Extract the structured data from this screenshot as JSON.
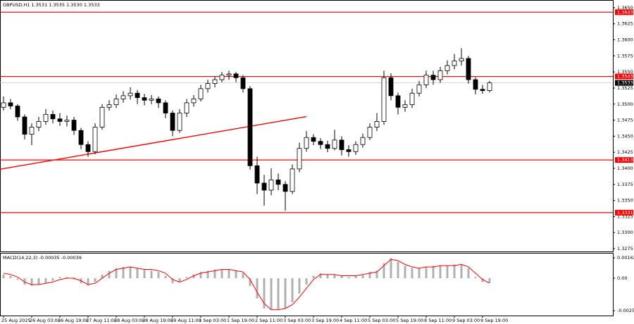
{
  "chart_data": [
    {
      "type": "candlestick",
      "title": "GBPUSD,H1  1.3531 1.3535 1.3530 1.3533",
      "open": [
        1.3495,
        1.3502,
        1.3497,
        1.348,
        1.3453,
        1.3464,
        1.3473,
        1.3484,
        1.3477,
        1.3473,
        1.3475,
        1.3459,
        1.3437,
        1.3426,
        1.3464,
        1.3495,
        1.3499,
        1.3508,
        1.3513,
        1.3517,
        1.351,
        1.3506,
        1.3508,
        1.3502,
        1.3486,
        1.3459,
        1.3486,
        1.3502,
        1.3508,
        1.3524,
        1.3532,
        1.3538,
        1.3545,
        1.3547,
        1.3541,
        1.3524,
        1.3404,
        1.3377,
        1.3366,
        1.3382,
        1.3375,
        1.3364,
        1.3399,
        1.3431,
        1.3448,
        1.3442,
        1.3437,
        1.3431,
        1.3444,
        1.3429,
        1.3426,
        1.3437,
        1.3448,
        1.3464,
        1.3473,
        1.3541,
        1.3513,
        1.3495,
        1.3499,
        1.3517,
        1.353,
        1.3545,
        1.3538,
        1.3552,
        1.356,
        1.3567,
        1.3571,
        1.3538,
        1.3523,
        1.3521
      ],
      "high": [
        1.3512,
        1.3508,
        1.35,
        1.3484,
        1.347,
        1.348,
        1.3492,
        1.349,
        1.3486,
        1.3482,
        1.348,
        1.3463,
        1.3442,
        1.347,
        1.35,
        1.3506,
        1.3515,
        1.352,
        1.3526,
        1.3522,
        1.3516,
        1.3514,
        1.3512,
        1.3506,
        1.349,
        1.3492,
        1.3508,
        1.3514,
        1.353,
        1.3538,
        1.3543,
        1.355,
        1.3552,
        1.355,
        1.3545,
        1.3528,
        1.3418,
        1.339,
        1.34,
        1.3392,
        1.338,
        1.3406,
        1.344,
        1.3458,
        1.3453,
        1.3447,
        1.3443,
        1.346,
        1.345,
        1.3436,
        1.3442,
        1.3454,
        1.347,
        1.3486,
        1.3552,
        1.3548,
        1.3518,
        1.3506,
        1.3524,
        1.3536,
        1.3552,
        1.3552,
        1.3558,
        1.3568,
        1.3578,
        1.3587,
        1.3575,
        1.3542,
        1.353,
        1.3536
      ],
      "low": [
        1.349,
        1.3492,
        1.3474,
        1.3445,
        1.3436,
        1.3458,
        1.3468,
        1.347,
        1.3466,
        1.3465,
        1.3452,
        1.343,
        1.3418,
        1.3422,
        1.346,
        1.349,
        1.3494,
        1.3502,
        1.3507,
        1.35,
        1.3498,
        1.35,
        1.3494,
        1.3478,
        1.345,
        1.3455,
        1.348,
        1.3496,
        1.3504,
        1.3518,
        1.3526,
        1.3534,
        1.3538,
        1.3534,
        1.3518,
        1.3398,
        1.336,
        1.3342,
        1.3358,
        1.3366,
        1.3334,
        1.336,
        1.3394,
        1.3426,
        1.3436,
        1.343,
        1.3425,
        1.3428,
        1.342,
        1.3418,
        1.3421,
        1.3432,
        1.3444,
        1.3458,
        1.3468,
        1.3506,
        1.3484,
        1.3488,
        1.3494,
        1.3512,
        1.3525,
        1.353,
        1.3533,
        1.3546,
        1.3554,
        1.356,
        1.3532,
        1.3515,
        1.3516,
        1.3518
      ],
      "close": [
        1.3502,
        1.3497,
        1.348,
        1.3453,
        1.3464,
        1.3473,
        1.3484,
        1.3477,
        1.3473,
        1.3475,
        1.3459,
        1.3437,
        1.3426,
        1.3464,
        1.3495,
        1.3499,
        1.3508,
        1.3513,
        1.3517,
        1.351,
        1.3506,
        1.3508,
        1.3502,
        1.3486,
        1.3459,
        1.3486,
        1.3502,
        1.3508,
        1.3524,
        1.3532,
        1.3538,
        1.3545,
        1.3547,
        1.3541,
        1.3524,
        1.3404,
        1.3377,
        1.3366,
        1.3382,
        1.3375,
        1.3364,
        1.3399,
        1.3431,
        1.3448,
        1.3442,
        1.3437,
        1.3431,
        1.3444,
        1.3429,
        1.3426,
        1.3437,
        1.3448,
        1.3464,
        1.3473,
        1.3541,
        1.3513,
        1.3495,
        1.3499,
        1.3517,
        1.353,
        1.3545,
        1.3538,
        1.3552,
        1.356,
        1.3567,
        1.3571,
        1.3538,
        1.3523,
        1.3521,
        1.3533
      ],
      "xlim": [
        -0.5,
        86.5
      ],
      "xticks": [
        {
          "value": 0,
          "label": "25 Aug 2025"
        },
        {
          "value": 4,
          "label": "26 Aug 03:00"
        },
        {
          "value": 8,
          "label": "26 Aug 19:00"
        },
        {
          "value": 12,
          "label": "27 Aug 11:00"
        },
        {
          "value": 16,
          "label": "28 Aug 03:00"
        },
        {
          "value": 20,
          "label": "28 Aug 19:00"
        },
        {
          "value": 24,
          "label": "29 Aug 11:00"
        },
        {
          "value": 28,
          "label": "1 Sep 03:00"
        },
        {
          "value": 32,
          "label": "1 Sep 19:00"
        },
        {
          "value": 36,
          "label": "2 Sep 11:00"
        },
        {
          "value": 40,
          "label": "3 Sep 03:00"
        },
        {
          "value": 44,
          "label": "3 Sep 19:00"
        },
        {
          "value": 48,
          "label": "4 Sep 11:00"
        },
        {
          "value": 52,
          "label": "5 Sep 03:00"
        },
        {
          "value": 56,
          "label": "5 Sep 19:00"
        },
        {
          "value": 60,
          "label": "8 Sep 11:00"
        },
        {
          "value": 64,
          "label": "9 Sep 03:00"
        },
        {
          "value": 68,
          "label": "9 Sep 19:00"
        }
      ],
      "ylim": [
        1.32706,
        1.36609
      ],
      "yticks": [
        1.3275,
        {
          "value": 1.33,
          "label": "1.3300"
        },
        1.3325,
        {
          "value": 1.335,
          "label": "1.3350"
        },
        1.3375,
        {
          "value": 1.34,
          "label": "1.3400"
        },
        1.3425,
        {
          "value": 1.345,
          "label": "1.3450"
        },
        1.3475,
        {
          "value": 1.35,
          "label": "1.3500"
        },
        1.3525,
        {
          "value": 1.355,
          "label": "1.3550"
        },
        1.3575,
        {
          "value": 1.36,
          "label": "1.3600"
        },
        1.3625,
        {
          "value": 1.365,
          "label": "1.3650"
        }
      ],
      "levels": [
        1.3643,
        1.3543,
        1.3413,
        1.3331
      ],
      "level_color": "#ff0000",
      "trendline": {
        "x": [
          -0.5,
          43
        ],
        "y": [
          1.33985,
          1.34805
        ]
      }
    },
    {
      "type": "macd",
      "title": "MACD(14,22,3) -0.00035 -0.00039",
      "ylim": [
        -0.00296,
        0.00196
      ],
      "yticks": [
        0.00162,
        {
          "value": 0,
          "label": "0.00"
        },
        -0.00258
      ],
      "series": [
        {
          "type": "bar",
          "color": "#b0b0b0",
          "values": [
            0.0003,
            0.0002,
            -0.0001,
            -0.0005,
            -0.0006,
            -0.0005,
            -0.0004,
            -0.0002,
            0.0001,
            0.0001,
            -0.0001,
            -0.0004,
            -0.0006,
            -0.0003,
            0.0003,
            0.0006,
            0.0008,
            0.0009,
            0.0009,
            0.0008,
            0.0007,
            0.0006,
            0.0005,
            0.0002,
            -0.0004,
            -0.0003,
            0.0001,
            0.0003,
            0.0005,
            0.0006,
            0.0007,
            0.0007,
            0.0007,
            0.0006,
            0.0004,
            -0.0006,
            -0.0016,
            -0.0024,
            -0.0025,
            -0.0025,
            -0.0024,
            -0.0019,
            -0.0012,
            -0.0005,
            0.0002,
            0.0004,
            0.0003,
            0.0003,
            0.0002,
            0.0001,
            0.0002,
            0.0003,
            0.0005,
            0.0006,
            0.0012,
            0.0016,
            0.0013,
            0.001,
            0.0008,
            0.0008,
            0.0009,
            0.001,
            0.001,
            0.001,
            0.0011,
            0.0011,
            0.0008,
            0.0001,
            -0.0003,
            -0.00035
          ]
        },
        {
          "type": "line",
          "color": "#ff0000",
          "values": [
            0.0004,
            0.0003,
            0.0001,
            -0.0003,
            -0.0005,
            -0.0005,
            -0.0004,
            -0.0003,
            -0.0001,
            0,
            0,
            -0.0002,
            -0.0005,
            -0.0004,
            0,
            0.0004,
            0.0007,
            0.0008,
            0.0009,
            0.0008,
            0.0007,
            0.0007,
            0.0006,
            0.0004,
            -0.0001,
            -0.0003,
            -0.0001,
            0.0002,
            0.0004,
            0.0005,
            0.0006,
            0.0007,
            0.0007,
            0.0006,
            0.0005,
            -0.0001,
            -0.0011,
            -0.002,
            -0.0025,
            -0.0025,
            -0.0024,
            -0.0021,
            -0.0015,
            -0.0008,
            -0.0001,
            0.0003,
            0.0003,
            0.0003,
            0.0002,
            0.0002,
            0.0002,
            0.0003,
            0.0004,
            0.0005,
            0.001,
            0.0015,
            0.0014,
            0.0011,
            0.0009,
            0.0008,
            0.0009,
            0.0009,
            0.001,
            0.001,
            0.001,
            0.0011,
            0.0009,
            0.0004,
            -0.0001,
            -0.00039
          ]
        }
      ]
    }
  ]
}
